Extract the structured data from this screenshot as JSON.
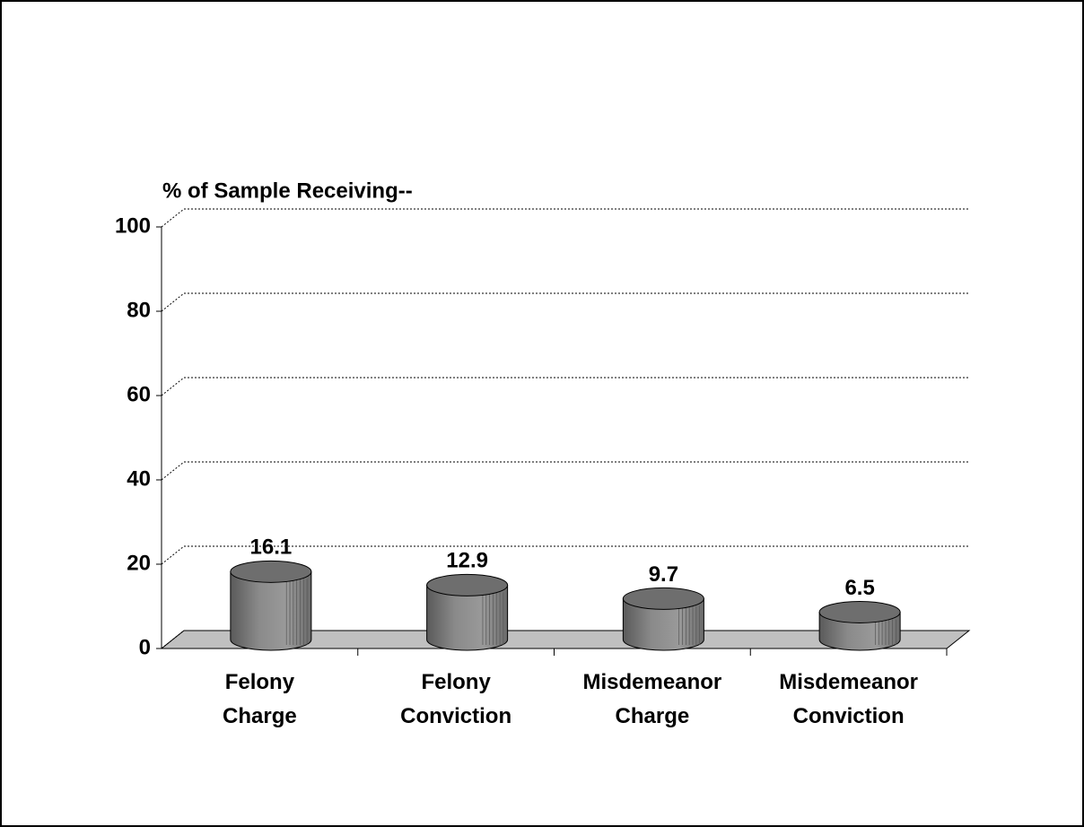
{
  "chart_data": {
    "type": "bar",
    "title": "% of Sample Receiving--",
    "categories": [
      "Felony Charge",
      "Felony Conviction",
      "Misdemeanor Charge",
      "Misdemeanor Conviction"
    ],
    "values": [
      16.1,
      12.9,
      9.7,
      6.5
    ],
    "color": "#808080",
    "ylim": [
      0,
      100
    ],
    "yticks": [
      0,
      20,
      40,
      60,
      80,
      100
    ],
    "grid": true
  }
}
